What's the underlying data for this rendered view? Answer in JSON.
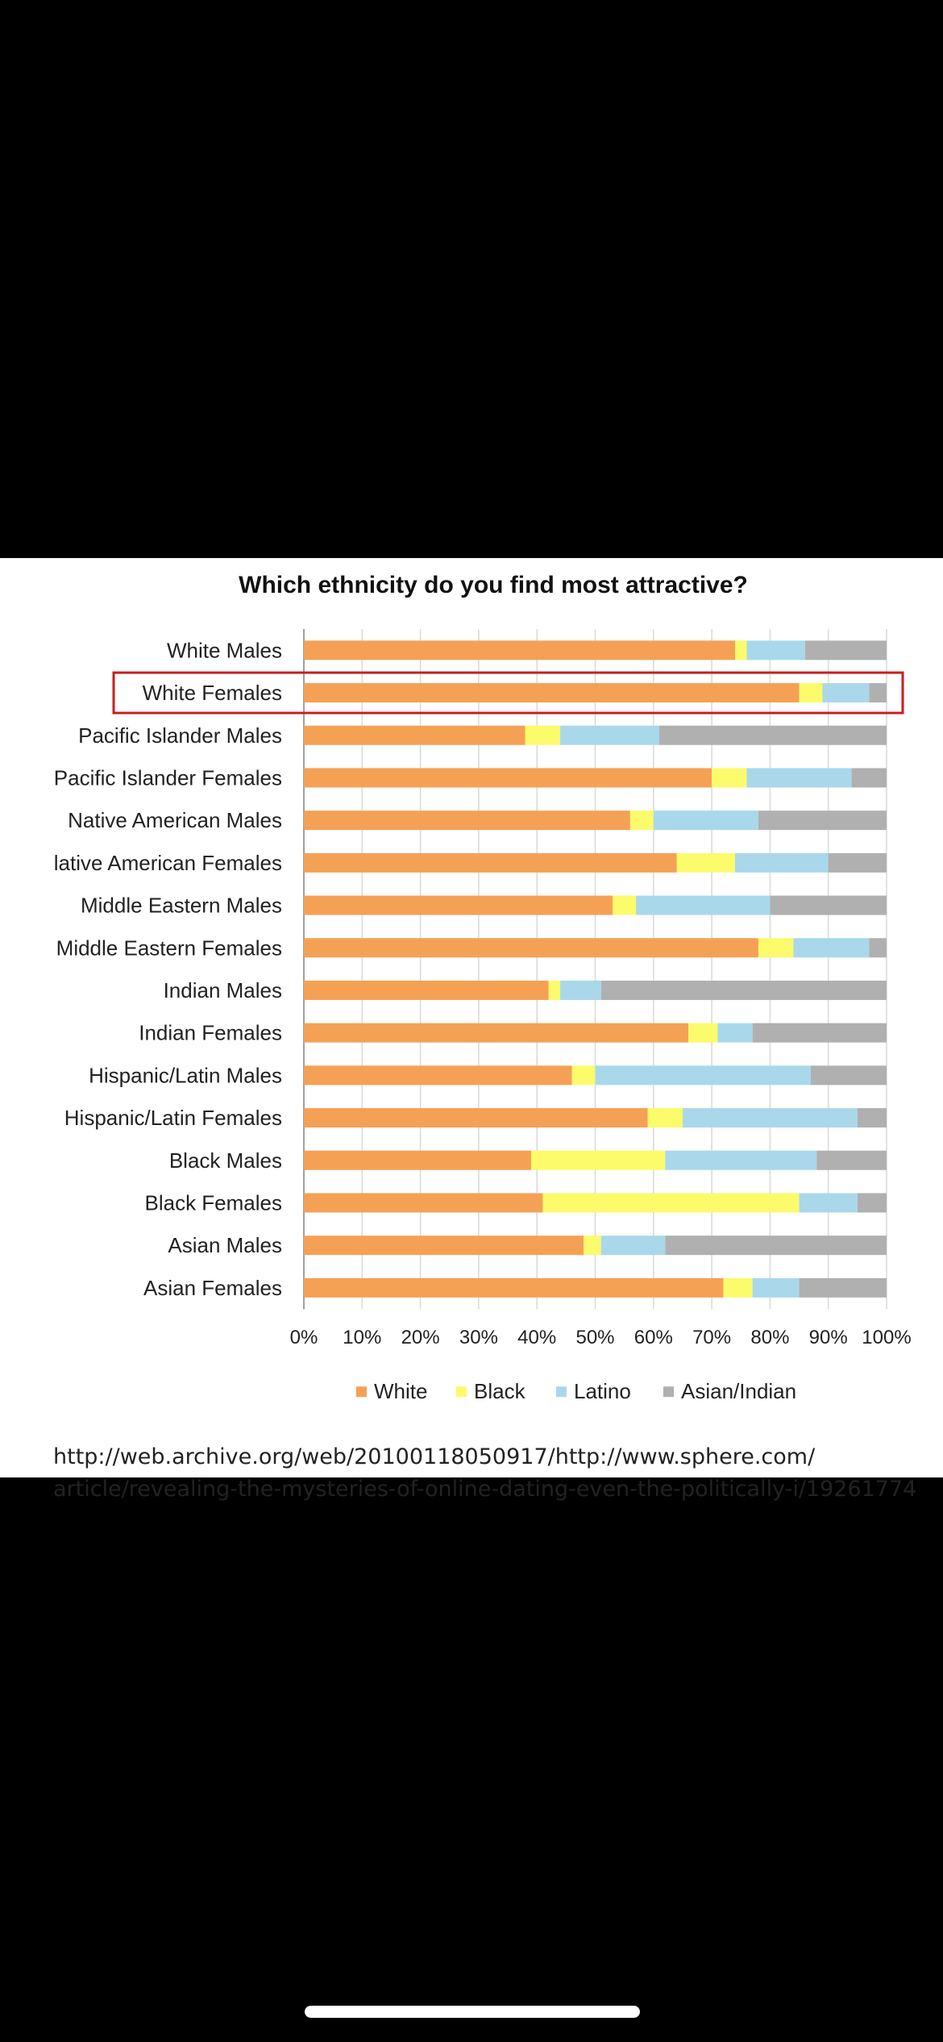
{
  "chart_data": {
    "type": "bar",
    "orientation": "horizontal",
    "stacked": true,
    "title": "Which ethnicity do you find most attractive?",
    "categories": [
      "White Males",
      "White Females",
      "Pacific Islander Males",
      "Pacific Islander Females",
      "Native American Males",
      "lative American Females",
      "Middle Eastern Males",
      "Middle Eastern Females",
      "Indian Males",
      "Indian Females",
      "Hispanic/Latin Males",
      "Hispanic/Latin Females",
      "Black Males",
      "Black Females",
      "Asian Males",
      "Asian Females"
    ],
    "highlighted_category": "White Females",
    "series": [
      {
        "name": "White",
        "color": "#F5A155",
        "values": [
          74,
          85,
          38,
          70,
          56,
          64,
          53,
          78,
          42,
          66,
          46,
          59,
          39,
          41,
          48,
          72
        ]
      },
      {
        "name": "Black",
        "color": "#FBFB6B",
        "values": [
          2,
          4,
          6,
          6,
          4,
          10,
          4,
          6,
          2,
          5,
          4,
          6,
          23,
          44,
          3,
          5
        ]
      },
      {
        "name": "Latino",
        "color": "#A9D8EA",
        "values": [
          10,
          8,
          17,
          18,
          18,
          16,
          23,
          13,
          7,
          6,
          37,
          30,
          26,
          10,
          11,
          8
        ]
      },
      {
        "name": "Asian/Indian",
        "color": "#B0B0B0",
        "values": [
          14,
          3,
          39,
          6,
          22,
          10,
          20,
          3,
          49,
          23,
          13,
          5,
          12,
          5,
          38,
          15
        ]
      }
    ],
    "xlim": [
      0,
      100
    ],
    "x_tick_labels": [
      "0%",
      "10%",
      "20%",
      "30%",
      "40%",
      "50%",
      "60%",
      "70%",
      "80%",
      "90%",
      "100%"
    ],
    "grid": true,
    "legend_position": "bottom"
  },
  "source": {
    "line1": "http://web.archive.org/web/20100118050917/http://www.sphere.com/",
    "line2": "article/revealing-the-mysteries-of-online-dating-even-the-politically-i/19261774"
  },
  "colors": {
    "highlight_box": "#C81E1E",
    "background": "#000000",
    "panel": "#FFFFFF"
  }
}
